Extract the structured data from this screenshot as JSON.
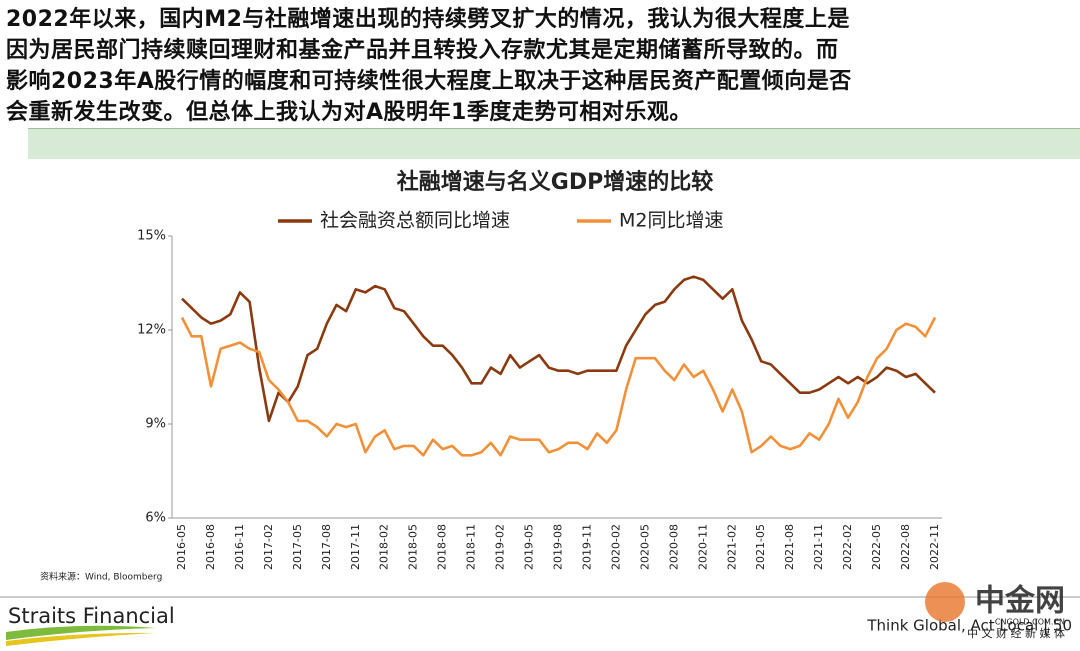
{
  "paragraph": [
    "2022年以来，国内M2与社融增速出现的持续劈叉扩大的情况，我认为很大程度上是",
    "因为居民部门持续赎回理财和基金产品并且转投入存款尤其是定期储蓄所导致的。而",
    "影响2023年A股行情的幅度和可持续性很大程度上取决于这种居民资产配置倾向是否",
    "会重新发生改变。但总体上我认为对A股明年1季度走势可相对乐观。"
  ],
  "source": "资料来源：Wind, Bloomberg",
  "footer": {
    "brand": "Straits Financial",
    "tagline": "Think Global, Act Local | 50"
  },
  "watermark": {
    "name": "中金网",
    "site": "CNGOLD.COM.CN",
    "slogan": "中 文 财 经 新 媒 体"
  },
  "chart_data": {
    "type": "line",
    "title": "社融增速与名义GDP增速的比较",
    "categories": [
      "2016-05",
      null,
      null,
      "2016-08",
      null,
      null,
      "2016-11",
      null,
      null,
      "2017-02",
      null,
      null,
      "2017-05",
      null,
      null,
      "2017-08",
      null,
      null,
      "2017-11",
      null,
      null,
      "2018-02",
      null,
      null,
      "2018-05",
      null,
      null,
      "2018-08",
      null,
      null,
      "2018-11",
      null,
      null,
      "2019-02",
      null,
      null,
      "2019-05",
      null,
      null,
      "2019-08",
      null,
      null,
      "2019-11",
      null,
      null,
      "2020-02",
      null,
      null,
      "2020-05",
      null,
      null,
      "2020-08",
      null,
      null,
      "2020-11",
      null,
      null,
      "2021-02",
      null,
      null,
      "2021-05",
      null,
      null,
      "2021-08",
      null,
      null,
      "2021-11",
      null,
      null,
      "2022-02",
      null,
      null,
      "2022-05",
      null,
      null,
      "2022-08",
      null,
      null,
      "2022-11"
    ],
    "series": [
      {
        "name": "社会融资总额同比增速",
        "color": "#8b3a10",
        "values": [
          13.0,
          12.7,
          12.4,
          12.2,
          12.3,
          12.5,
          13.2,
          12.9,
          10.8,
          9.1,
          10.0,
          9.7,
          10.2,
          11.2,
          11.4,
          12.2,
          12.8,
          12.6,
          13.3,
          13.2,
          13.4,
          13.3,
          12.7,
          12.6,
          12.2,
          11.8,
          11.5,
          11.5,
          11.2,
          10.8,
          10.3,
          10.3,
          10.8,
          10.6,
          11.2,
          10.8,
          11.0,
          11.2,
          10.8,
          10.7,
          10.7,
          10.6,
          10.7,
          10.7,
          10.7,
          10.7,
          11.5,
          12.0,
          12.5,
          12.8,
          12.9,
          13.3,
          13.6,
          13.7,
          13.6,
          13.3,
          13.0,
          13.3,
          12.3,
          11.7,
          11.0,
          10.9,
          10.6,
          10.3,
          10.0,
          10.0,
          10.1,
          10.3,
          10.5,
          10.3,
          10.5,
          10.3,
          10.5,
          10.8,
          10.7,
          10.5,
          10.6,
          10.3,
          10.0
        ]
      },
      {
        "name": "M2同比增速",
        "color": "#f0913a",
        "values": [
          12.4,
          11.8,
          11.8,
          10.2,
          11.4,
          11.5,
          11.6,
          11.4,
          11.3,
          10.4,
          10.1,
          9.7,
          9.1,
          9.1,
          8.9,
          8.6,
          9.0,
          8.9,
          9.0,
          8.1,
          8.6,
          8.8,
          8.2,
          8.3,
          8.3,
          8.0,
          8.5,
          8.2,
          8.3,
          8.0,
          8.0,
          8.1,
          8.4,
          8.0,
          8.6,
          8.5,
          8.5,
          8.5,
          8.1,
          8.2,
          8.4,
          8.4,
          8.2,
          8.7,
          8.4,
          8.8,
          10.1,
          11.1,
          11.1,
          11.1,
          10.7,
          10.4,
          10.9,
          10.5,
          10.7,
          10.1,
          9.4,
          10.1,
          9.4,
          8.1,
          8.3,
          8.6,
          8.3,
          8.2,
          8.3,
          8.7,
          8.5,
          9.0,
          9.8,
          9.2,
          9.7,
          10.5,
          11.1,
          11.4,
          12.0,
          12.2,
          12.1,
          11.8,
          12.4
        ]
      }
    ],
    "ylim": [
      6,
      15
    ],
    "yticks": [
      {
        "value": 6,
        "label": "6%"
      },
      {
        "value": 9,
        "label": "9%"
      },
      {
        "value": 12,
        "label": "12%"
      },
      {
        "value": 15,
        "label": "15%"
      }
    ],
    "legend": "top"
  }
}
